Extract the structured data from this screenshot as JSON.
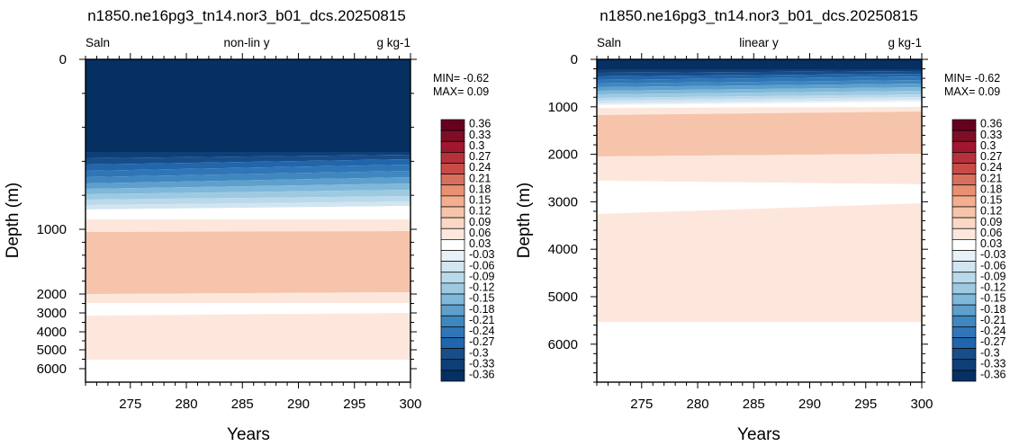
{
  "colors": {
    "levels": [
      -0.36,
      -0.33,
      -0.3,
      -0.27,
      -0.24,
      -0.21,
      -0.18,
      -0.15,
      -0.12,
      -0.09,
      -0.06,
      -0.03,
      0.03,
      0.06,
      0.09,
      0.12,
      0.15,
      0.18,
      0.21,
      0.24,
      0.27,
      0.3,
      0.33,
      0.36
    ],
    "level_labels": [
      "-0.36",
      "-0.33",
      "-0.3",
      "-0.27",
      "-0.24",
      "-0.21",
      "-0.18",
      "-0.15",
      "-0.12",
      "-0.09",
      "-0.06",
      "-0.03",
      "0.03",
      "0.06",
      "0.09",
      "0.12",
      "0.15",
      "0.18",
      "0.21",
      "0.24",
      "0.27",
      "0.3",
      "0.33",
      "0.36"
    ],
    "palette": [
      "#053061",
      "#0e3f76",
      "#174e8a",
      "#2166ac",
      "#3076b6",
      "#3f87c0",
      "#5e9fcc",
      "#7eb8da",
      "#9ecae1",
      "#bad9eb",
      "#d2e5f0",
      "#e8f1f7",
      "#ffffff",
      "#fde7dc",
      "#f9d8c5",
      "#f5c4aa",
      "#f2ae8e",
      "#e89172",
      "#d9705d",
      "#c84b4a",
      "#b6313c",
      "#a0172e",
      "#7e0e26",
      "#67001f"
    ]
  },
  "chart_data": [
    {
      "type": "heatmap",
      "title": "n1850.ne16pg3_tn14.nor3_b01_dcs.20250815",
      "subtitle_left": "Saln",
      "subtitle_center": "non-lin y",
      "subtitle_right": "g kg-1",
      "xlabel": "Years",
      "ylabel": "Depth (m)",
      "x_ticks": [
        "275",
        "280",
        "285",
        "290",
        "295",
        "300"
      ],
      "xlim": [
        271,
        300
      ],
      "y_ticks": [
        "0",
        "1000",
        "2000",
        "3000",
        "4000",
        "5000",
        "6000"
      ],
      "y_scale": "non-linear",
      "stats": {
        "min": "MIN= -0.62",
        "max": "MAX=  0.09"
      },
      "colorbar_labels": [
        "-0.36",
        "-0.33",
        "-0.3",
        "-0.27",
        "-0.24",
        "-0.21",
        "-0.18",
        "-0.15",
        "-0.12",
        "-0.09",
        "-0.06",
        "-0.03",
        "0.03",
        "0.06",
        "0.09",
        "0.12",
        "0.15",
        "0.18",
        "0.21",
        "0.24",
        "0.27",
        "0.3",
        "0.33",
        "0.36"
      ]
    },
    {
      "type": "heatmap",
      "title": "n1850.ne16pg3_tn14.nor3_b01_dcs.20250815",
      "subtitle_left": "Saln",
      "subtitle_center": "linear y",
      "subtitle_right": "g kg-1",
      "xlabel": "Years",
      "ylabel": "Depth (m)",
      "x_ticks": [
        "275",
        "280",
        "285",
        "290",
        "295",
        "300"
      ],
      "xlim": [
        271,
        300
      ],
      "y_ticks": [
        "0",
        "1000",
        "2000",
        "3000",
        "4000",
        "5000",
        "6000"
      ],
      "ylim": [
        0,
        6800
      ],
      "y_scale": "linear",
      "stats": {
        "min": "MIN= -0.62",
        "max": "MAX=  0.09"
      },
      "colorbar_labels": [
        "-0.36",
        "-0.33",
        "-0.3",
        "-0.27",
        "-0.24",
        "-0.21",
        "-0.18",
        "-0.15",
        "-0.12",
        "-0.09",
        "-0.06",
        "-0.03",
        "0.03",
        "0.06",
        "0.09",
        "0.12",
        "0.15",
        "0.18",
        "0.21",
        "0.24",
        "0.27",
        "0.3",
        "0.33",
        "0.36"
      ]
    }
  ]
}
